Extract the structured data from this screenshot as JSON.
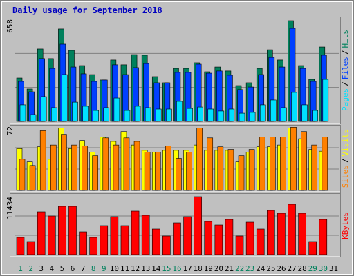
{
  "title": "Daily usage for September 2018",
  "legend_separator": "/",
  "highlight_categories": [
    "1",
    "2",
    "8",
    "9",
    "15",
    "16",
    "22",
    "23",
    "29",
    "30"
  ],
  "highlight_color": "#00805c",
  "chart_data": [
    {
      "type": "bar",
      "categories": [
        "1",
        "2",
        "3",
        "4",
        "5",
        "6",
        "7",
        "8",
        "9",
        "10",
        "11",
        "12",
        "13",
        "14",
        "15",
        "16",
        "17",
        "18",
        "19",
        "20",
        "21",
        "22",
        "23",
        "24",
        "25",
        "26",
        "27",
        "28",
        "29",
        "30",
        "31"
      ],
      "series": [
        {
          "name": "Hits",
          "color": "#00805c",
          "values": [
            280,
            209,
            467,
            405,
            596,
            458,
            360,
            302,
            267,
            396,
            365,
            431,
            427,
            289,
            249,
            342,
            342,
            378,
            320,
            351,
            325,
            231,
            249,
            342,
            462,
            396,
            649,
            360,
            271,
            480,
            0
          ]
        },
        {
          "name": "Files",
          "color": "#0040ff",
          "values": [
            258,
            191,
            405,
            342,
            498,
            351,
            307,
            258,
            267,
            365,
            302,
            347,
            373,
            249,
            249,
            316,
            316,
            369,
            311,
            325,
            298,
            205,
            222,
            302,
            413,
            351,
            600,
            342,
            258,
            427,
            0
          ]
        },
        {
          "name": "Pages",
          "color": "#00e0ff",
          "values": [
            107,
            44,
            160,
            89,
            302,
            124,
            98,
            71,
            89,
            151,
            71,
            98,
            89,
            80,
            80,
            129,
            84,
            93,
            80,
            67,
            80,
            53,
            58,
            107,
            138,
            89,
            187,
            107,
            71,
            271,
            0
          ]
        }
      ],
      "ylim": [
        0,
        658
      ],
      "yticks": [
        658
      ]
    },
    {
      "type": "bar",
      "categories": [
        "1",
        "2",
        "3",
        "4",
        "5",
        "6",
        "7",
        "8",
        "9",
        "10",
        "11",
        "12",
        "13",
        "14",
        "15",
        "16",
        "17",
        "18",
        "19",
        "20",
        "21",
        "22",
        "23",
        "24",
        "25",
        "26",
        "27",
        "28",
        "29",
        "30",
        "31"
      ],
      "series": [
        {
          "name": "Visits",
          "color": "#ffff00",
          "values": [
            47,
            32,
            49,
            35,
            70,
            47,
            56,
            43,
            60,
            55,
            66,
            51,
            45,
            43,
            45,
            45,
            45,
            51,
            45,
            45,
            45,
            32,
            43,
            49,
            49,
            51,
            70,
            58,
            46,
            44,
            0
          ]
        },
        {
          "name": "Sites",
          "color": "#ff8000",
          "values": [
            35,
            28,
            67,
            51,
            63,
            51,
            50,
            39,
            59,
            51,
            59,
            55,
            43,
            43,
            50,
            36,
            43,
            70,
            59,
            49,
            46,
            39,
            46,
            60,
            60,
            60,
            71,
            66,
            51,
            60,
            0
          ]
        }
      ],
      "ylim": [
        0,
        72
      ],
      "yticks": [
        72
      ]
    },
    {
      "type": "bar",
      "categories": [
        "1",
        "2",
        "3",
        "4",
        "5",
        "6",
        "7",
        "8",
        "9",
        "10",
        "11",
        "12",
        "13",
        "14",
        "15",
        "16",
        "17",
        "18",
        "19",
        "20",
        "21",
        "22",
        "23",
        "24",
        "25",
        "26",
        "27",
        "28",
        "29",
        "30",
        "31"
      ],
      "series": [
        {
          "name": "KBytes",
          "color": "#ff0000",
          "values": [
            3403,
            2586,
            8440,
            7623,
            9528,
            9528,
            4492,
            3403,
            5717,
            7487,
            5717,
            8576,
            7759,
            5037,
            3675,
            6261,
            7487,
            11434,
            6534,
            5853,
            6942,
            3675,
            6397,
            5037,
            8712,
            8167,
            9937,
            8167,
            2586,
            6942,
            0
          ]
        }
      ],
      "ylim": [
        0,
        11434
      ],
      "yticks": [
        11434
      ]
    }
  ]
}
